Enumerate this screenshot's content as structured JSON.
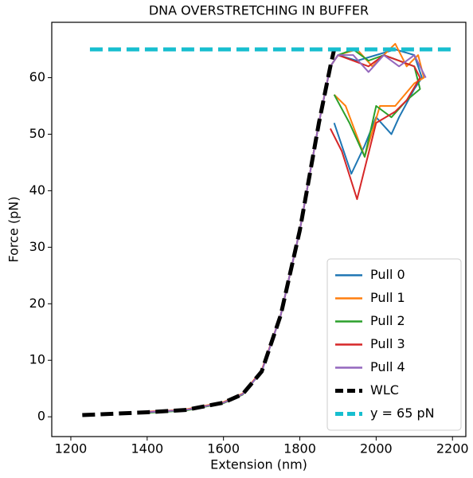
{
  "chart_data": {
    "type": "line",
    "title": "DNA OVERSTRETCHING IN BUFFER",
    "x_label": "Extension (nm)",
    "y_label": "Force (pN)",
    "xlim": [
      1150,
      2235
    ],
    "ylim": [
      -3.5,
      69.8
    ],
    "xticks": [
      1200,
      1400,
      1600,
      1800,
      2000,
      2200
    ],
    "yticks": [
      0,
      10,
      20,
      30,
      40,
      50,
      60
    ],
    "legend": "lower right",
    "series": [
      {
        "name": "Pull 0",
        "color": "#1f77b4",
        "style": "solid",
        "x": [
          1400,
          1500,
          1600,
          1650,
          1700,
          1750,
          1800,
          1850,
          1880,
          1900,
          1950,
          2000,
          2050,
          2100,
          2120,
          2100,
          2060,
          2040,
          2000,
          1970,
          1935,
          1890
        ],
        "values": [
          0.8,
          1.2,
          2.5,
          4,
          8,
          18,
          33,
          52,
          62,
          64,
          63,
          64,
          65,
          64,
          60,
          58,
          53,
          50,
          53,
          48,
          43,
          52
        ]
      },
      {
        "name": "Pull 1",
        "color": "#ff7f0e",
        "style": "solid",
        "x": [
          1400,
          1500,
          1600,
          1650,
          1700,
          1750,
          1800,
          1850,
          1880,
          1900,
          1950,
          1990,
          2020,
          2050,
          2080,
          2110,
          2125,
          2100,
          2050,
          2010,
          1970,
          1920,
          1890
        ],
        "values": [
          0.8,
          1.3,
          2.6,
          4.1,
          8.2,
          18,
          33,
          52,
          62,
          64,
          65,
          62,
          64,
          66,
          62,
          64,
          60,
          59,
          55,
          55,
          46,
          55,
          57
        ]
      },
      {
        "name": "Pull 2",
        "color": "#2ca02c",
        "style": "solid",
        "x": [
          1400,
          1500,
          1600,
          1650,
          1700,
          1750,
          1800,
          1850,
          1880,
          1900,
          1940,
          1980,
          2020,
          2060,
          2100,
          2115,
          2080,
          2040,
          2000,
          1970,
          1930,
          1890
        ],
        "values": [
          0.7,
          1.1,
          2.4,
          3.9,
          8,
          18,
          33,
          52,
          62,
          64,
          65,
          63,
          64,
          63,
          62,
          58,
          56,
          53,
          55,
          46,
          52,
          57
        ]
      },
      {
        "name": "Pull 3",
        "color": "#d62728",
        "style": "solid",
        "x": [
          1400,
          1500,
          1600,
          1650,
          1700,
          1750,
          1800,
          1850,
          1880,
          1900,
          1940,
          1980,
          2020,
          2060,
          2100,
          2115,
          2080,
          2050,
          2000,
          1950,
          1910,
          1880
        ],
        "values": [
          0.9,
          1.2,
          2.5,
          4,
          8.1,
          18,
          33,
          52,
          62,
          64,
          63,
          62,
          64,
          63,
          62,
          60,
          56,
          54,
          52,
          38.5,
          47,
          51
        ]
      },
      {
        "name": "Pull 4",
        "color": "#9467bd",
        "style": "solid",
        "x": [
          1400,
          1500,
          1600,
          1650,
          1700,
          1750,
          1800,
          1850,
          1880,
          1900,
          1940,
          1980,
          2020,
          2060,
          2100,
          2130
        ],
        "values": [
          0.8,
          1.2,
          2.5,
          4,
          8,
          18,
          33,
          52,
          62,
          64,
          64,
          61,
          64,
          62,
          64,
          60
        ]
      },
      {
        "name": "WLC",
        "color": "#000000",
        "style": "dashed",
        "x": [
          1230,
          1400,
          1500,
          1600,
          1650,
          1700,
          1750,
          1800,
          1850,
          1880,
          1890
        ],
        "values": [
          0.3,
          0.8,
          1.2,
          2.5,
          4,
          8,
          18,
          33,
          52,
          62,
          65
        ]
      },
      {
        "name": "y = 65 pN",
        "color": "#17becf",
        "style": "dashed",
        "x": [
          1250,
          2200
        ],
        "values": [
          65,
          65
        ]
      }
    ]
  }
}
